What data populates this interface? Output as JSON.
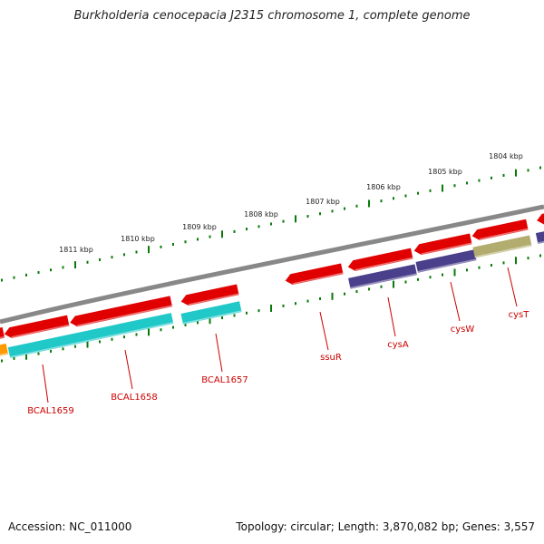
{
  "title": "Burkholderia cenocepacia J2315 chromosome 1, complete genome",
  "scale_labels": [
    "1811 kbp",
    "1810 kbp",
    "1809 kbp",
    "1808 kbp",
    "1807 kbp",
    "1806 kbp",
    "1805 kbp",
    "1804 kbp"
  ],
  "gene_labels": [
    "BCAL1659",
    "BCAL1658",
    "BCAL1657",
    "ssuR",
    "cysA",
    "cysW",
    "cysT"
  ],
  "footer": {
    "accession": "Accession: NC_011000",
    "stats": "Topology: circular; Length: 3,870,082 bp; Genes: 3,557"
  },
  "colors": {
    "cds": "#e00000",
    "cds_light": "#ff7070",
    "cog_cyan": "#20c8c8",
    "cog_purple": "#4a3f8a",
    "cog_olive": "#b2ad6e",
    "cog_orange": "#ff9a00",
    "backbone": "#888888",
    "ticks": "#0a7a0a",
    "gene_label": "#cc0000"
  }
}
